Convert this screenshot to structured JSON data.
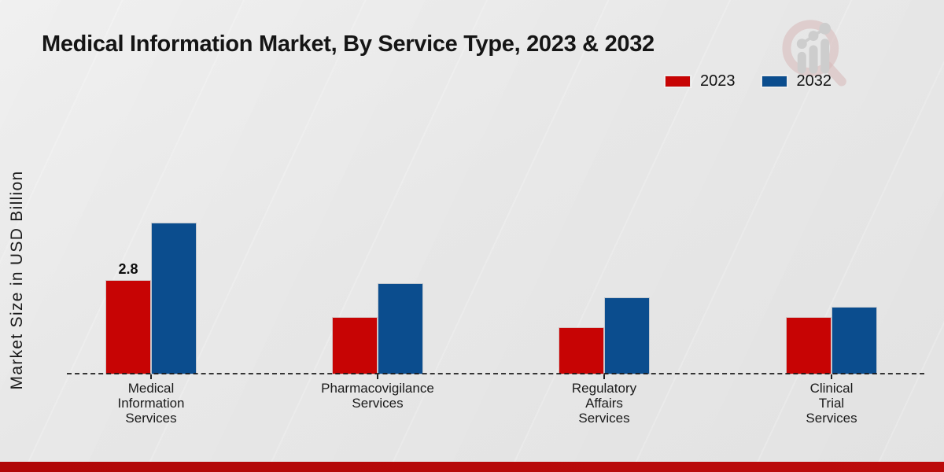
{
  "chart_data": {
    "type": "bar",
    "title": "Medical Information Market, By Service Type, 2023 & 2032",
    "ylabel": "Market Size in USD Billion",
    "xlabel": "",
    "ylim": [
      0,
      5
    ],
    "grid": false,
    "legend_position": "top-right",
    "baseline_style": "dashed",
    "categories": [
      "Medical Information Services",
      "Pharmacovigilance Services",
      "Regulatory Affairs Services",
      "Clinical Trial Services"
    ],
    "category_label_lines": [
      "Medical\nInformation\nServices",
      "Pharmacovigilance\nServices",
      "Regulatory\nAffairs\nServices",
      "Clinical\nTrial\nServices"
    ],
    "series": [
      {
        "name": "2023",
        "color": "#c70404",
        "values": [
          2.8,
          1.7,
          1.4,
          1.7
        ],
        "value_labels": [
          "2.8",
          "",
          "",
          ""
        ]
      },
      {
        "name": "2032",
        "color": "#0b4d8e",
        "values": [
          4.5,
          2.7,
          2.3,
          2.0
        ],
        "value_labels": [
          "",
          "",
          "",
          ""
        ]
      }
    ]
  },
  "colors": {
    "red_2023": "#c70404",
    "blue_2032": "#0b4d8e",
    "background": "#e9e9e9",
    "footer_strip": "#b30808",
    "text": "#1a1a1a"
  },
  "branding": {
    "watermark": "magnifier-bar-chart-logo"
  }
}
